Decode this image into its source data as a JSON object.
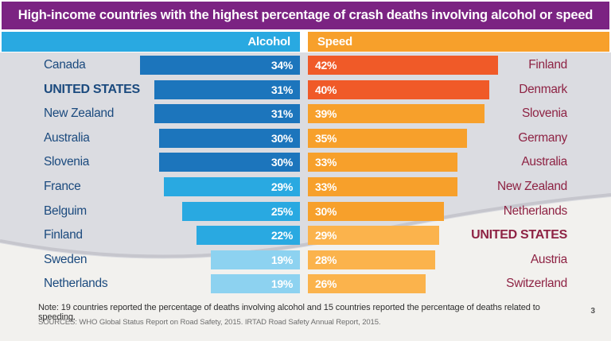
{
  "title": "High-income countries with the highest percentage of crash deaths involving alcohol or speed",
  "header": {
    "alcohol_label": "Alcohol",
    "speed_label": "Speed"
  },
  "chart_data": {
    "type": "bar",
    "orientation": "horizontal-bidirectional",
    "title": "High-income countries with the highest percentage of crash deaths involving alcohol or speed",
    "unit": "%",
    "legend": [
      "Alcohol",
      "Speed"
    ],
    "rows": [
      {
        "alcohol": {
          "country": "Canada",
          "value": 34,
          "label": "34%",
          "shade": "dark",
          "bold": false
        },
        "speed": {
          "country": "Finland",
          "value": 42,
          "label": "42%",
          "shade": "red",
          "bold": false
        }
      },
      {
        "alcohol": {
          "country": "UNITED STATES",
          "value": 31,
          "label": "31%",
          "shade": "dark",
          "bold": true
        },
        "speed": {
          "country": "Denmark",
          "value": 40,
          "label": "40%",
          "shade": "red",
          "bold": false
        }
      },
      {
        "alcohol": {
          "country": "New Zealand",
          "value": 31,
          "label": "31%",
          "shade": "dark",
          "bold": false
        },
        "speed": {
          "country": "Slovenia",
          "value": 39,
          "label": "39%",
          "shade": "orange",
          "bold": false
        }
      },
      {
        "alcohol": {
          "country": "Australia",
          "value": 30,
          "label": "30%",
          "shade": "dark",
          "bold": false
        },
        "speed": {
          "country": "Germany",
          "value": 35,
          "label": "35%",
          "shade": "orange",
          "bold": false
        }
      },
      {
        "alcohol": {
          "country": "Slovenia",
          "value": 30,
          "label": "30%",
          "shade": "dark",
          "bold": false
        },
        "speed": {
          "country": "Australia",
          "value": 33,
          "label": "33%",
          "shade": "orange",
          "bold": false
        }
      },
      {
        "alcohol": {
          "country": "France",
          "value": 29,
          "label": "29%",
          "shade": "medium",
          "bold": false
        },
        "speed": {
          "country": "New Zealand",
          "value": 33,
          "label": "33%",
          "shade": "orange",
          "bold": false
        }
      },
      {
        "alcohol": {
          "country": "Belguim",
          "value": 25,
          "label": "25%",
          "shade": "medium",
          "bold": false
        },
        "speed": {
          "country": "Netherlands",
          "value": 30,
          "label": "30%",
          "shade": "orange",
          "bold": false
        }
      },
      {
        "alcohol": {
          "country": "Finland",
          "value": 22,
          "label": "22%",
          "shade": "medium",
          "bold": false
        },
        "speed": {
          "country": "UNITED STATES",
          "value": 29,
          "label": "29%",
          "shade": "light",
          "bold": true
        }
      },
      {
        "alcohol": {
          "country": "Sweden",
          "value": 19,
          "label": "19%",
          "shade": "light",
          "bold": false
        },
        "speed": {
          "country": "Austria",
          "value": 28,
          "label": "28%",
          "shade": "light",
          "bold": false
        }
      },
      {
        "alcohol": {
          "country": "Netherlands",
          "value": 19,
          "label": "19%",
          "shade": "light",
          "bold": false
        },
        "speed": {
          "country": "Switzerland",
          "value": 26,
          "label": "26%",
          "shade": "light",
          "bold": false
        }
      }
    ]
  },
  "note": "Note: 19 countries reported the percentage of deaths involving alcohol and 15 countries reported the percentage of deaths related to speeding.",
  "sources": "SOURCES: WHO Global Status Report on Road Safety, 2015. IRTAD Road Safety Annual Report, 2015.",
  "page_number": "3",
  "colors": {
    "title_bg": "#7B2382",
    "alcohol_header": "#29A9E1",
    "speed_header": "#F7A02B",
    "alcohol_dark": "#1C75BC",
    "alcohol_medium": "#29A9E1",
    "alcohol_light": "#8DD2F0",
    "speed_red": "#F05A28",
    "speed_orange": "#F7A02B",
    "speed_light": "#FBB34C",
    "left_label": "#1B4A7E",
    "right_label": "#8E2344",
    "bg_gray": "#DBDCE1",
    "bg_white": "#F2F1EE",
    "edge_shadow": "#C6C6CD"
  }
}
